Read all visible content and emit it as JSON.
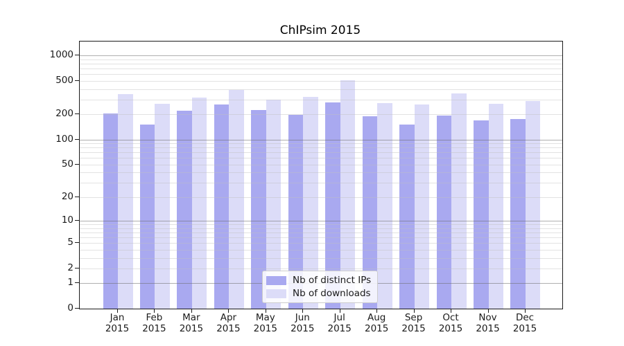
{
  "chart_data": {
    "type": "bar",
    "title": "ChIPsim 2015",
    "categories": [
      "Jan",
      "Feb",
      "Mar",
      "Apr",
      "May",
      "Jun",
      "Jul",
      "Aug",
      "Sep",
      "Oct",
      "Nov",
      "Dec"
    ],
    "x_tick_year": "2015",
    "series": [
      {
        "name": "Nb of distinct IPs",
        "color": "#a9a9f0",
        "values": [
          205,
          150,
          220,
          262,
          225,
          195,
          276,
          191,
          150,
          192,
          170,
          177
        ]
      },
      {
        "name": "Nb of downloads",
        "color": "#dcdcf8",
        "values": [
          346,
          266,
          316,
          390,
          300,
          321,
          506,
          271,
          263,
          352,
          266,
          286
        ]
      }
    ],
    "y_ticks": [
      0,
      1,
      2,
      5,
      10,
      20,
      50,
      100,
      200,
      500,
      1000
    ],
    "y_scale": "log10(1+x)",
    "ylim": [
      0,
      1460
    ],
    "xlabel": "",
    "ylabel": "",
    "grid": {
      "major_values": [
        1,
        10,
        100,
        1000
      ],
      "minor_values": "2-9 per decade",
      "major_color": "#b0b0b0",
      "minor_color": "#e2e2e2"
    },
    "legend_position": "lower center"
  }
}
